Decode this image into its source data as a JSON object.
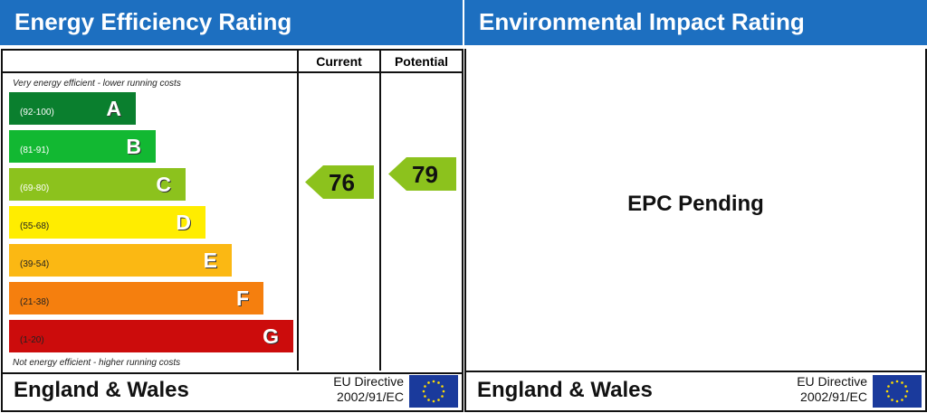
{
  "energy": {
    "title": "Energy Efficiency Rating",
    "col_current": "Current",
    "col_potential": "Potential",
    "top_note": "Very energy efficient - lower running costs",
    "bottom_note": "Not energy efficient - higher running costs",
    "bands": [
      {
        "letter": "A",
        "range": "(92-100)",
        "color": "#0a7f2e"
      },
      {
        "letter": "B",
        "range": "(81-91)",
        "color": "#12b832"
      },
      {
        "letter": "C",
        "range": "(69-80)",
        "color": "#8cc21d"
      },
      {
        "letter": "D",
        "range": "(55-68)",
        "color": "#ffed00"
      },
      {
        "letter": "E",
        "range": "(39-54)",
        "color": "#fbb813"
      },
      {
        "letter": "F",
        "range": "(21-38)",
        "color": "#f57f0e"
      },
      {
        "letter": "G",
        "range": "(1-20)",
        "color": "#cc0c0c"
      }
    ],
    "current": "76",
    "potential": "79",
    "current_band": "C",
    "potential_band": "C",
    "footer_region": "England & Wales",
    "footer_directive_1": "EU Directive",
    "footer_directive_2": "2002/91/EC"
  },
  "environment": {
    "title": "Environmental Impact Rating",
    "status": "EPC Pending",
    "footer_region": "England & Wales",
    "footer_directive_1": "EU Directive",
    "footer_directive_2": "2002/91/EC"
  },
  "colors": {
    "header_blue": "#1d6fc0",
    "eu_flag": "#1a3a9c"
  }
}
